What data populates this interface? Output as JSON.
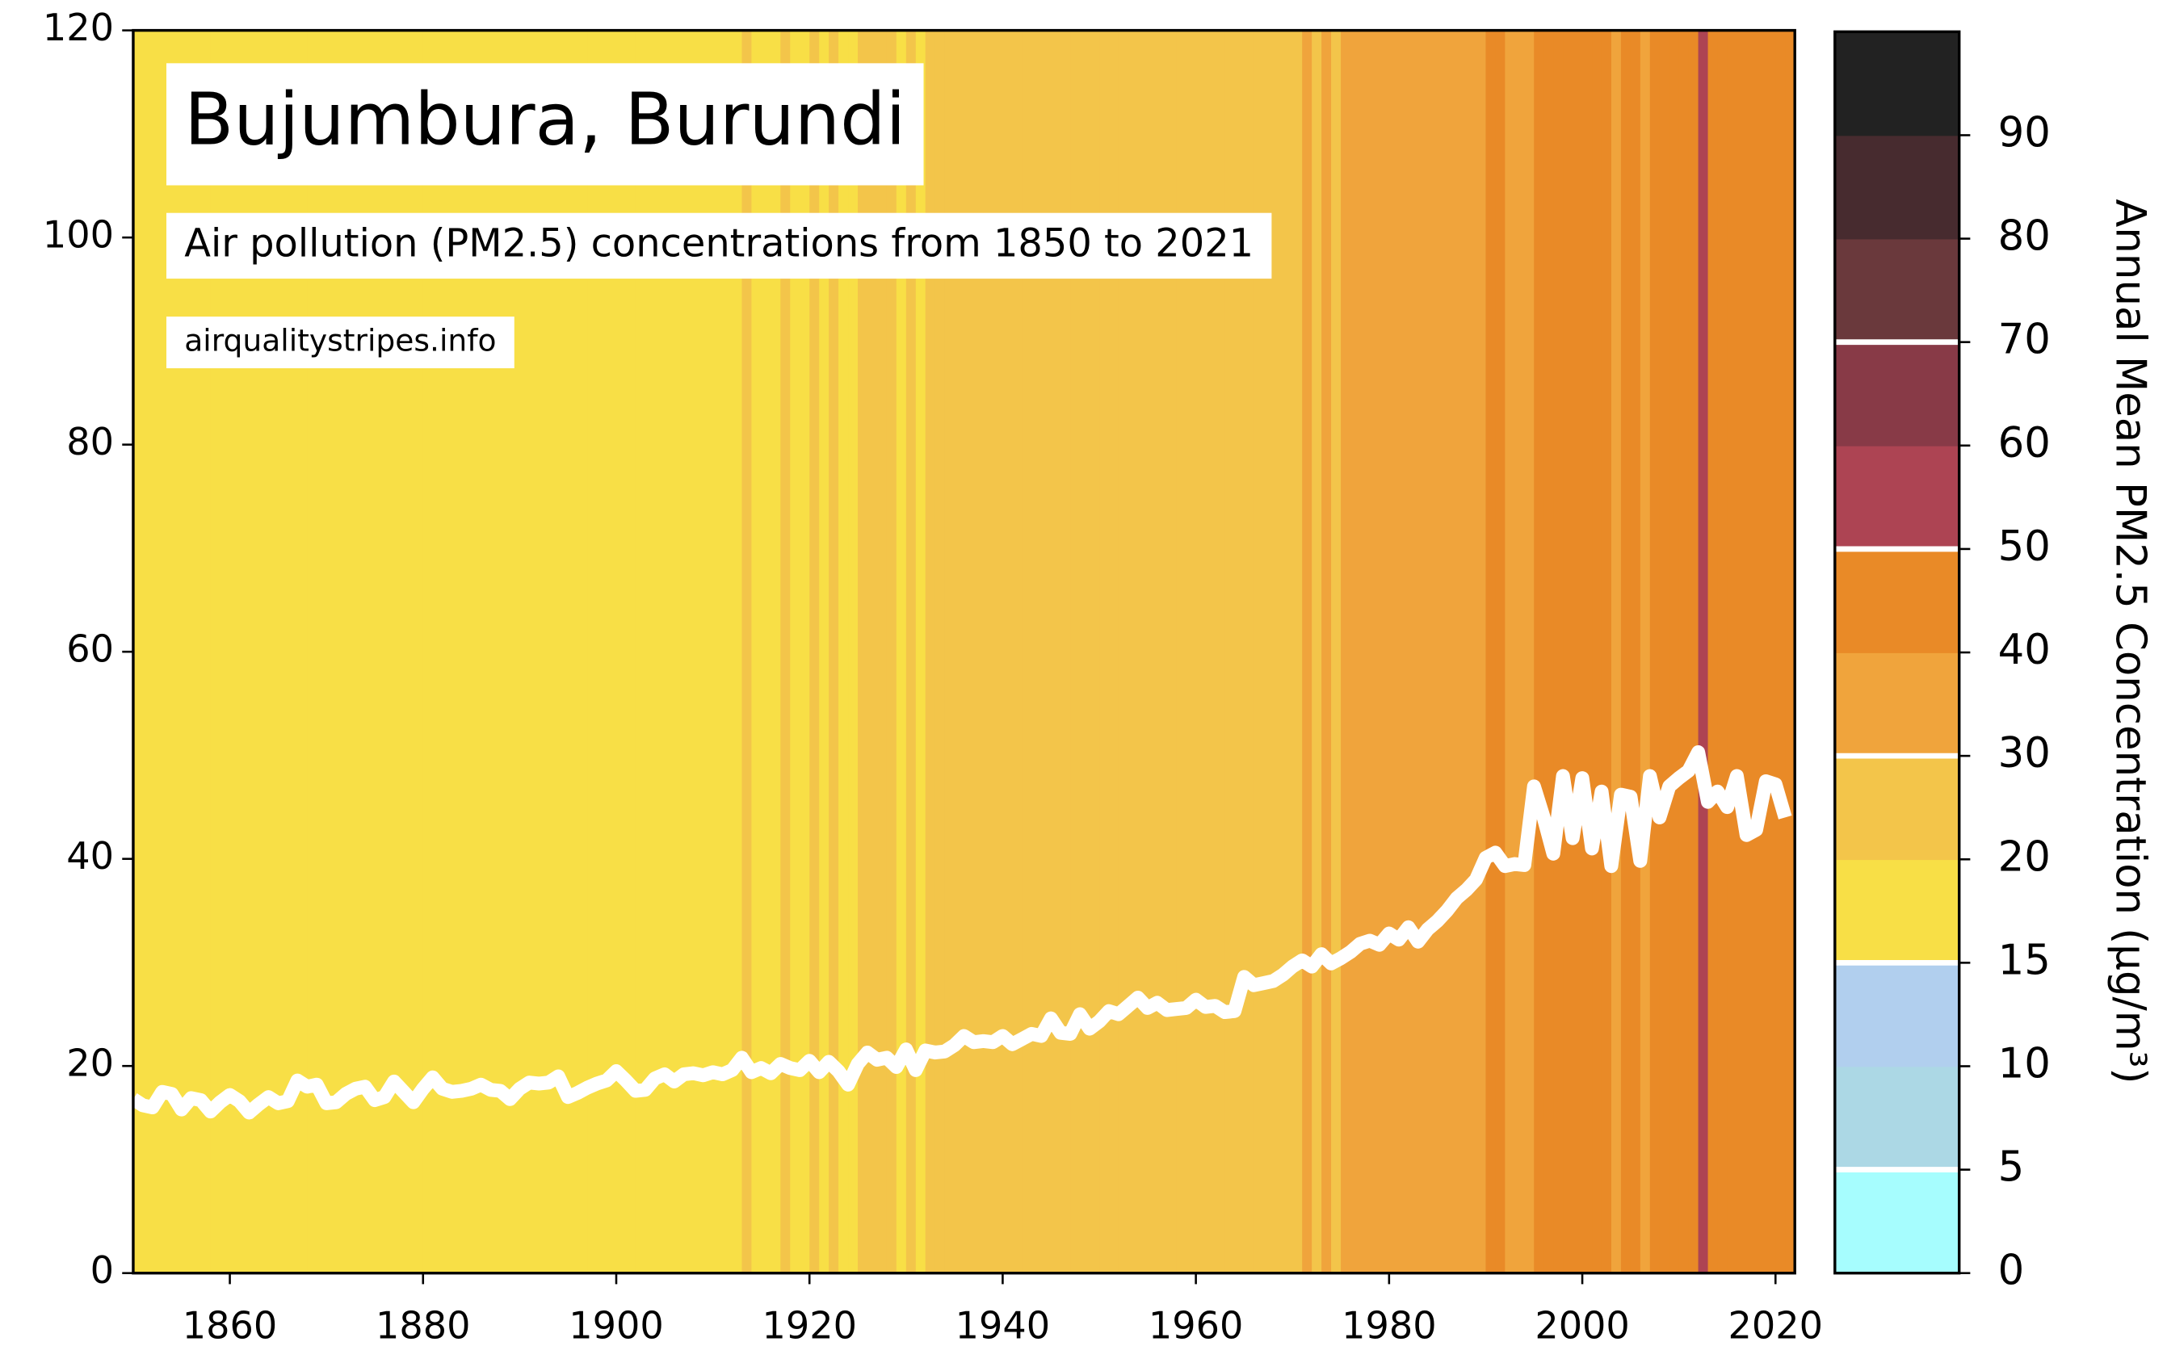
{
  "chart_data": {
    "type": "stripes-line",
    "title": "Bujumbura, Burundi",
    "subtitle": "Air pollution (PM2.5) concentrations from 1850 to 2021",
    "source": "airqualitystripes.info",
    "x": [
      1850,
      1851,
      1852,
      1853,
      1854,
      1855,
      1856,
      1857,
      1858,
      1859,
      1860,
      1861,
      1862,
      1863,
      1864,
      1865,
      1866,
      1867,
      1868,
      1869,
      1870,
      1871,
      1872,
      1873,
      1874,
      1875,
      1876,
      1877,
      1878,
      1879,
      1880,
      1881,
      1882,
      1883,
      1884,
      1885,
      1886,
      1887,
      1888,
      1889,
      1890,
      1891,
      1892,
      1893,
      1894,
      1895,
      1896,
      1897,
      1898,
      1899,
      1900,
      1901,
      1902,
      1903,
      1904,
      1905,
      1906,
      1907,
      1908,
      1909,
      1910,
      1911,
      1912,
      1913,
      1914,
      1915,
      1916,
      1917,
      1918,
      1919,
      1920,
      1921,
      1922,
      1923,
      1924,
      1925,
      1926,
      1927,
      1928,
      1929,
      1930,
      1931,
      1932,
      1933,
      1934,
      1935,
      1936,
      1937,
      1938,
      1939,
      1940,
      1941,
      1942,
      1943,
      1944,
      1945,
      1946,
      1947,
      1948,
      1949,
      1950,
      1951,
      1952,
      1953,
      1954,
      1955,
      1956,
      1957,
      1958,
      1959,
      1960,
      1961,
      1962,
      1963,
      1964,
      1965,
      1966,
      1967,
      1968,
      1969,
      1970,
      1971,
      1972,
      1973,
      1974,
      1975,
      1976,
      1977,
      1978,
      1979,
      1980,
      1981,
      1982,
      1983,
      1984,
      1985,
      1986,
      1987,
      1988,
      1989,
      1990,
      1991,
      1992,
      1993,
      1994,
      1995,
      1996,
      1997,
      1998,
      1999,
      2000,
      2001,
      2002,
      2003,
      2004,
      2005,
      2006,
      2007,
      2008,
      2009,
      2010,
      2011,
      2012,
      2013,
      2014,
      2015,
      2016,
      2017,
      2018,
      2019,
      2020,
      2021
    ],
    "values": [
      16.8,
      16.2,
      16.0,
      17.5,
      17.3,
      15.8,
      16.9,
      16.7,
      15.6,
      16.5,
      17.2,
      16.6,
      15.5,
      16.3,
      17.0,
      16.4,
      16.6,
      18.6,
      18.0,
      18.2,
      16.4,
      16.5,
      17.3,
      17.8,
      18.0,
      16.7,
      17.0,
      18.5,
      17.5,
      16.5,
      17.8,
      18.9,
      17.8,
      17.5,
      17.6,
      17.8,
      18.2,
      17.7,
      17.6,
      16.8,
      17.8,
      18.4,
      18.3,
      18.4,
      19.0,
      17.0,
      17.4,
      17.9,
      18.3,
      18.6,
      19.5,
      18.6,
      17.6,
      17.7,
      18.8,
      19.2,
      18.5,
      19.2,
      19.3,
      19.1,
      19.4,
      19.2,
      19.6,
      20.8,
      19.4,
      19.8,
      19.3,
      20.2,
      19.8,
      19.6,
      20.5,
      19.4,
      20.4,
      19.5,
      18.2,
      20.2,
      21.3,
      20.6,
      20.8,
      19.9,
      21.6,
      19.6,
      21.5,
      21.3,
      21.4,
      22.0,
      22.9,
      22.3,
      22.4,
      22.3,
      22.9,
      22.1,
      22.6,
      23.1,
      22.9,
      24.6,
      23.2,
      23.1,
      25.0,
      23.6,
      24.3,
      25.3,
      25.0,
      25.8,
      26.6,
      25.6,
      26.1,
      25.4,
      25.5,
      25.6,
      26.4,
      25.7,
      25.8,
      25.2,
      25.3,
      28.6,
      27.8,
      28.0,
      28.2,
      28.8,
      29.6,
      30.2,
      29.6,
      30.8,
      29.9,
      30.4,
      31.0,
      31.8,
      32.1,
      31.7,
      32.8,
      32.2,
      33.4,
      32.0,
      33.2,
      34.0,
      35.0,
      36.2,
      37.0,
      38.0,
      40.1,
      40.6,
      39.3,
      39.5,
      39.4,
      47.0,
      44.0,
      40.5,
      48.0,
      42.0,
      47.8,
      41.0,
      46.5,
      39.3,
      46.2,
      46.0,
      39.8,
      48.0,
      44.0,
      47.0,
      47.8,
      48.5,
      50.3,
      45.5,
      46.5,
      45.0,
      48.0,
      42.3,
      42.8,
      47.5,
      47.2,
      44.0
    ],
    "line_color": "#ffffff",
    "xlim": [
      1850,
      2022
    ],
    "xticks": [
      1860,
      1880,
      1900,
      1920,
      1940,
      1960,
      1980,
      2000,
      2020
    ],
    "ylim": [
      0,
      120
    ],
    "yticks": [
      0,
      20,
      40,
      60,
      80,
      100,
      120
    ],
    "colorbar": {
      "label": "Annual Mean PM2.5 Concentration (μg/m³)",
      "bounds": [
        0,
        5,
        10,
        15,
        20,
        30,
        40,
        50,
        60,
        70,
        80,
        90,
        100
      ],
      "colors": [
        "#a6fdfe",
        "#acd8e5",
        "#b1cfee",
        "#f8df46",
        "#f3c54a",
        "#f0a43c",
        "#e98a27",
        "#ad4453",
        "#883a47",
        "#6a393c",
        "#472b2f",
        "#222222"
      ],
      "ticks": [
        0,
        5,
        10,
        15,
        20,
        30,
        40,
        50,
        60,
        70,
        80,
        90
      ],
      "guidelines": [
        5,
        15,
        30,
        50,
        70
      ]
    }
  }
}
